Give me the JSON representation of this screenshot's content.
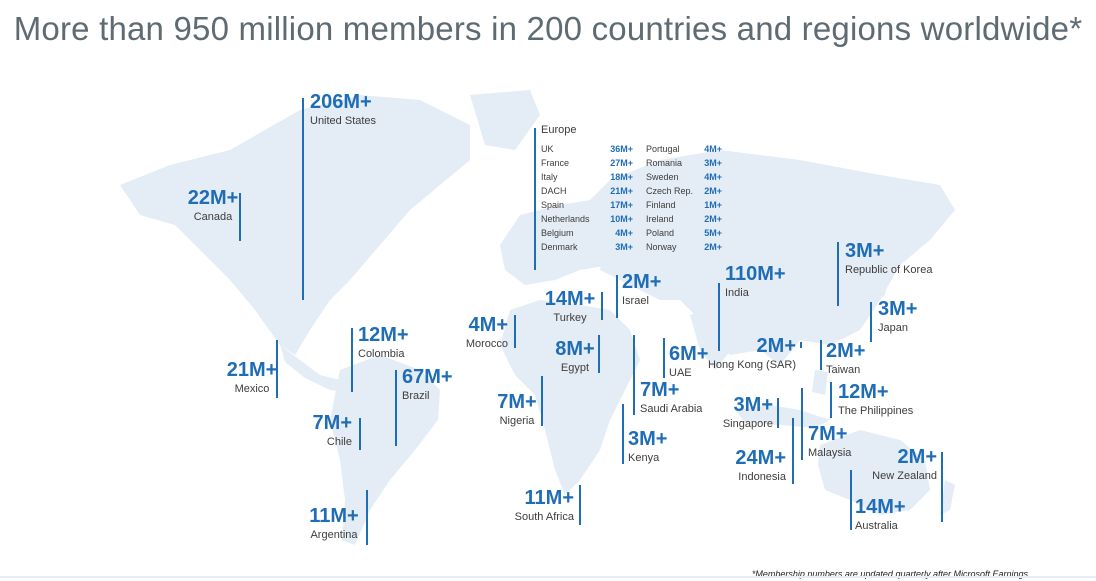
{
  "title": "More than 950 million members in 200 countries and regions worldwide*",
  "footnote": "*Membership numbers are updated quarterly after Microsoft Earnings",
  "colors": {
    "accent": "#1f6db5",
    "map_land": "#e4ecf5",
    "title": "#5f6b73"
  },
  "regions": [
    {
      "id": "us",
      "value": "206M+",
      "name": "United States"
    },
    {
      "id": "ca",
      "value": "22M+",
      "name": "Canada"
    },
    {
      "id": "mx",
      "value": "21M+",
      "name": "Mexico"
    },
    {
      "id": "co",
      "value": "12M+",
      "name": "Colombia"
    },
    {
      "id": "br",
      "value": "67M+",
      "name": "Brazil"
    },
    {
      "id": "cl",
      "value": "7M+",
      "name": "Chile"
    },
    {
      "id": "ar",
      "value": "11M+",
      "name": "Argentina"
    },
    {
      "id": "ma",
      "value": "4M+",
      "name": "Morocco"
    },
    {
      "id": "tr",
      "value": "14M+",
      "name": "Turkey"
    },
    {
      "id": "il",
      "value": "2M+",
      "name": "Israel"
    },
    {
      "id": "eg",
      "value": "8M+",
      "name": "Egypt"
    },
    {
      "id": "ng",
      "value": "7M+",
      "name": "Nigeria"
    },
    {
      "id": "sa",
      "value": "7M+",
      "name": "Saudi Arabia"
    },
    {
      "id": "ae",
      "value": "6M+",
      "name": "UAE"
    },
    {
      "id": "ke",
      "value": "3M+",
      "name": "Kenya"
    },
    {
      "id": "za",
      "value": "11M+",
      "name": "South Africa"
    },
    {
      "id": "in",
      "value": "110M+",
      "name": "India"
    },
    {
      "id": "hk",
      "value": "2M+",
      "name": "Hong Kong (SAR)"
    },
    {
      "id": "sg",
      "value": "3M+",
      "name": "Singapore"
    },
    {
      "id": "id",
      "value": "24M+",
      "name": "Indonesia"
    },
    {
      "id": "my",
      "value": "7M+",
      "name": "Malaysia"
    },
    {
      "id": "kr",
      "value": "3M+",
      "name": "Republic of Korea"
    },
    {
      "id": "jp",
      "value": "3M+",
      "name": "Japan"
    },
    {
      "id": "tw",
      "value": "2M+",
      "name": "Taiwan"
    },
    {
      "id": "ph",
      "value": "12M+",
      "name": "The Philippines"
    },
    {
      "id": "nz",
      "value": "2M+",
      "name": "New Zealand"
    },
    {
      "id": "au",
      "value": "14M+",
      "name": "Australia"
    }
  ],
  "europe": {
    "title": "Europe",
    "col1": [
      {
        "name": "UK",
        "value": "36M+"
      },
      {
        "name": "France",
        "value": "27M+"
      },
      {
        "name": "Italy",
        "value": "18M+"
      },
      {
        "name": "DACH",
        "value": "21M+"
      },
      {
        "name": "Spain",
        "value": "17M+"
      },
      {
        "name": "Netherlands",
        "value": "10M+"
      },
      {
        "name": "Belgium",
        "value": "4M+"
      },
      {
        "name": "Denmark",
        "value": "3M+"
      }
    ],
    "col2": [
      {
        "name": "Portugal",
        "value": "4M+"
      },
      {
        "name": "Romania",
        "value": "3M+"
      },
      {
        "name": "Sweden",
        "value": "4M+"
      },
      {
        "name": "Czech Rep.",
        "value": "2M+"
      },
      {
        "name": "Finland",
        "value": "1M+"
      },
      {
        "name": "Ireland",
        "value": "2M+"
      },
      {
        "name": "Poland",
        "value": "5M+"
      },
      {
        "name": "Norway",
        "value": "2M+"
      }
    ]
  }
}
